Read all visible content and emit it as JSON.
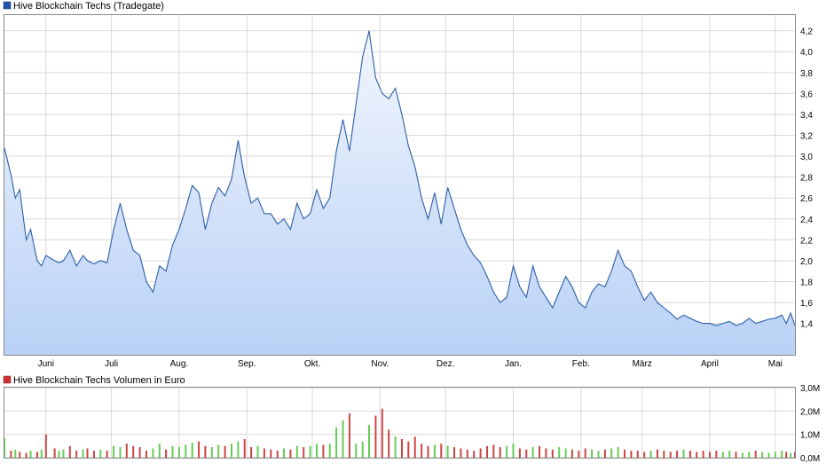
{
  "colors": {
    "price_line": "#2b5fa8",
    "price_fill_top": "#f2f6fd",
    "price_fill_bottom": "#b9d1f6",
    "volume_up": "#66cc55",
    "volume_down": "#cc4444",
    "grid": "#d9d9d9",
    "frame": "#888888",
    "legend_price_swatch": "#2255aa",
    "legend_volume_swatch": "#cc3333"
  },
  "chart_data": [
    {
      "type": "area",
      "title": "Hive Blockchain Techs (Tradegate)",
      "legend": "Hive Blockchain Techs (Tradegate)",
      "legend_position": "top-left",
      "grid": true,
      "ylim": [
        1.1,
        4.35
      ],
      "yticks": [
        "1,4",
        "1,6",
        "1,8",
        "2,0",
        "2,2",
        "2,4",
        "2,6",
        "2,8",
        "3,0",
        "3,2",
        "3,4",
        "3,6",
        "3,8",
        "4,0",
        "4,2"
      ],
      "ytick_values": [
        1.4,
        1.6,
        1.8,
        2.0,
        2.2,
        2.4,
        2.6,
        2.8,
        3.0,
        3.2,
        3.4,
        3.6,
        3.8,
        4.0,
        4.2
      ],
      "xtick_labels": [
        "Juni",
        "Juli",
        "Aug.",
        "Sep.",
        "Okt.",
        "Nov.",
        "Dez.",
        "Jan.",
        "Feb.",
        "März",
        "April",
        "Mai"
      ],
      "xtick_days": [
        19,
        49,
        80,
        111,
        141,
        172,
        202,
        233,
        264,
        292,
        323,
        353
      ],
      "xlim_days": [
        0,
        362
      ],
      "series": [
        {
          "name": "Hive Blockchain Techs (Tradegate)",
          "x_days": [
            0,
            3,
            5,
            7,
            10,
            12,
            15,
            17,
            19,
            23,
            25,
            27,
            30,
            33,
            36,
            38,
            41,
            44,
            47,
            50,
            53,
            56,
            59,
            62,
            65,
            68,
            71,
            74,
            77,
            80,
            83,
            86,
            89,
            92,
            95,
            98,
            101,
            104,
            107,
            110,
            113,
            116,
            119,
            122,
            125,
            128,
            131,
            134,
            137,
            140,
            143,
            146,
            149,
            152,
            155,
            158,
            161,
            164,
            167,
            170,
            173,
            176,
            179,
            182,
            185,
            188,
            191,
            194,
            197,
            200,
            203,
            206,
            209,
            212,
            215,
            218,
            221,
            224,
            227,
            230,
            233,
            236,
            239,
            242,
            245,
            248,
            251,
            254,
            257,
            260,
            263,
            266,
            269,
            272,
            275,
            278,
            281,
            284,
            287,
            290,
            293,
            296,
            299,
            302,
            305,
            308,
            311,
            314,
            317,
            320,
            323,
            326,
            329,
            332,
            335,
            338,
            341,
            344,
            347,
            350,
            353,
            356,
            358,
            360,
            362
          ],
          "y": [
            3.08,
            2.82,
            2.6,
            2.68,
            2.2,
            2.3,
            2.0,
            1.95,
            2.05,
            2.0,
            1.98,
            2.0,
            2.1,
            1.95,
            2.05,
            2.0,
            1.97,
            2.0,
            1.98,
            2.3,
            2.55,
            2.3,
            2.1,
            2.05,
            1.8,
            1.7,
            1.95,
            1.9,
            2.15,
            2.3,
            2.5,
            2.72,
            2.65,
            2.3,
            2.55,
            2.7,
            2.62,
            2.78,
            3.15,
            2.8,
            2.55,
            2.6,
            2.45,
            2.45,
            2.35,
            2.4,
            2.3,
            2.55,
            2.4,
            2.45,
            2.68,
            2.5,
            2.6,
            3.05,
            3.35,
            3.05,
            3.5,
            3.95,
            4.2,
            3.75,
            3.6,
            3.55,
            3.65,
            3.4,
            3.1,
            2.9,
            2.6,
            2.4,
            2.65,
            2.35,
            2.7,
            2.5,
            2.3,
            2.15,
            2.05,
            1.98,
            1.85,
            1.7,
            1.6,
            1.65,
            1.95,
            1.75,
            1.65,
            1.95,
            1.75,
            1.65,
            1.55,
            1.7,
            1.85,
            1.75,
            1.6,
            1.55,
            1.7,
            1.78,
            1.75,
            1.9,
            2.1,
            1.95,
            1.9,
            1.75,
            1.62,
            1.7,
            1.6,
            1.55,
            1.5,
            1.44,
            1.48,
            1.45,
            1.42,
            1.4,
            1.4,
            1.38,
            1.4,
            1.42,
            1.38,
            1.4,
            1.45,
            1.4,
            1.42,
            1.44,
            1.45,
            1.48,
            1.4,
            1.5,
            1.38
          ]
        }
      ]
    },
    {
      "type": "bar",
      "title": "Hive Blockchain Techs Volumen in Euro",
      "legend": "Hive Blockchain Techs Volumen in Euro",
      "legend_position": "top-left",
      "grid": true,
      "ylim": [
        0,
        3.0
      ],
      "yticks": [
        "0,0M",
        "1,0M",
        "2,0M",
        "3,0M"
      ],
      "ytick_values": [
        0,
        1.0,
        2.0,
        3.0
      ],
      "xlim_days": [
        0,
        362
      ],
      "series": [
        {
          "name": "Hive Blockchain Techs Volumen in Euro",
          "x_days": [
            0,
            3,
            5,
            7,
            10,
            12,
            15,
            17,
            19,
            23,
            25,
            27,
            30,
            33,
            36,
            38,
            41,
            44,
            47,
            50,
            53,
            56,
            59,
            62,
            65,
            68,
            71,
            74,
            77,
            80,
            83,
            86,
            89,
            92,
            95,
            98,
            101,
            104,
            107,
            110,
            113,
            116,
            119,
            122,
            125,
            128,
            131,
            134,
            137,
            140,
            143,
            146,
            149,
            152,
            155,
            158,
            161,
            164,
            167,
            170,
            173,
            176,
            179,
            182,
            185,
            188,
            191,
            194,
            197,
            200,
            203,
            206,
            209,
            212,
            215,
            218,
            221,
            224,
            227,
            230,
            233,
            236,
            239,
            242,
            245,
            248,
            251,
            254,
            257,
            260,
            263,
            266,
            269,
            272,
            275,
            278,
            281,
            284,
            287,
            290,
            293,
            296,
            299,
            302,
            305,
            308,
            311,
            314,
            317,
            320,
            323,
            326,
            329,
            332,
            335,
            338,
            341,
            344,
            347,
            350,
            353,
            356,
            358,
            360,
            362
          ],
          "values_m": [
            0.85,
            0.3,
            0.35,
            0.25,
            0.2,
            0.3,
            0.25,
            0.35,
            1.0,
            0.4,
            0.3,
            0.35,
            0.5,
            0.3,
            0.35,
            0.4,
            0.3,
            0.35,
            0.3,
            0.5,
            0.45,
            0.6,
            0.5,
            0.45,
            0.3,
            0.4,
            0.6,
            0.35,
            0.5,
            0.45,
            0.55,
            0.65,
            0.7,
            0.5,
            0.45,
            0.55,
            0.5,
            0.6,
            0.7,
            0.8,
            0.45,
            0.5,
            0.4,
            0.35,
            0.3,
            0.4,
            0.35,
            0.5,
            0.45,
            0.5,
            0.6,
            0.55,
            0.6,
            1.3,
            1.6,
            1.9,
            0.6,
            0.7,
            1.4,
            1.8,
            2.1,
            1.2,
            0.9,
            0.8,
            0.7,
            0.9,
            0.6,
            0.5,
            0.55,
            0.6,
            0.5,
            0.45,
            0.4,
            0.35,
            0.3,
            0.4,
            0.5,
            0.55,
            0.45,
            0.5,
            0.6,
            0.4,
            0.35,
            0.45,
            0.5,
            0.4,
            0.35,
            0.45,
            0.4,
            0.35,
            0.3,
            0.4,
            0.35,
            0.3,
            0.35,
            0.4,
            0.45,
            0.35,
            0.3,
            0.3,
            0.25,
            0.3,
            0.35,
            0.3,
            0.25,
            0.3,
            0.35,
            0.3,
            0.25,
            0.3,
            0.25,
            0.3,
            0.25,
            0.3,
            0.25,
            0.2,
            0.25,
            0.3,
            0.25,
            0.2,
            0.25,
            0.3,
            0.25,
            0.2,
            0.25
          ],
          "direction": [
            "up",
            "down",
            "up",
            "down",
            "down",
            "up",
            "down",
            "up",
            "down",
            "down",
            "up",
            "up",
            "down",
            "down",
            "up",
            "down",
            "down",
            "up",
            "down",
            "up",
            "up",
            "down",
            "down",
            "down",
            "down",
            "up",
            "up",
            "down",
            "up",
            "up",
            "up",
            "up",
            "down",
            "down",
            "up",
            "up",
            "down",
            "up",
            "up",
            "down",
            "down",
            "up",
            "down",
            "down",
            "down",
            "up",
            "down",
            "up",
            "down",
            "up",
            "up",
            "down",
            "up",
            "up",
            "up",
            "down",
            "up",
            "up",
            "up",
            "down",
            "down",
            "down",
            "up",
            "down",
            "down",
            "down",
            "down",
            "down",
            "up",
            "down",
            "up",
            "down",
            "down",
            "down",
            "down",
            "down",
            "down",
            "down",
            "down",
            "up",
            "up",
            "down",
            "down",
            "up",
            "down",
            "down",
            "down",
            "up",
            "up",
            "down",
            "down",
            "down",
            "up",
            "up",
            "down",
            "up",
            "up",
            "down",
            "down",
            "down",
            "down",
            "up",
            "down",
            "down",
            "down",
            "down",
            "up",
            "down",
            "down",
            "down",
            "down",
            "down",
            "up",
            "up",
            "down",
            "up",
            "up",
            "down",
            "up",
            "up",
            "up",
            "up",
            "down",
            "up",
            "down"
          ]
        }
      ]
    }
  ]
}
